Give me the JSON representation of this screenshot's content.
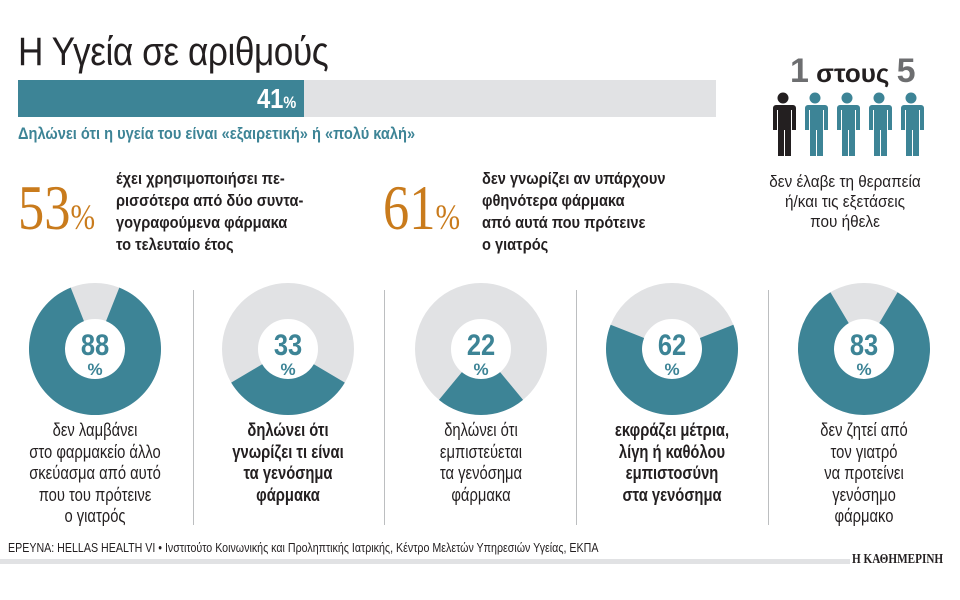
{
  "title": "Η Υγεία σε αριθμούς",
  "headline_bar": {
    "value": "41",
    "unit": "%",
    "fraction": 0.41,
    "caption": "Δηλώνει ότι η υγεία του είναι «εξαιρετική» ή «πολύ καλή»"
  },
  "stats": [
    {
      "value": "53",
      "unit": "%",
      "lines": [
        "έχει χρησιμοποιήσει πε-",
        "ρισσότερα από δύο συντα-",
        "γογραφούμενα φάρμακα",
        "το τελευταίο έτος"
      ]
    },
    {
      "value": "61",
      "unit": "%",
      "lines": [
        "δεν γνωρίζει αν υπάρχουν",
        "φθηνότερα φάρμακα",
        "από αυτά που πρότεινε",
        "ο γιατρός"
      ]
    }
  ],
  "ratio": {
    "num": "1",
    "word": "στους",
    "den": "5",
    "highlighted": 1,
    "total": 5,
    "lines": [
      "δεν έλαβε τη θεραπεία",
      "ή/και τις εξετάσεις",
      "που ήθελε"
    ]
  },
  "colors": {
    "teal": "#3d8496",
    "grey": "#e1e2e4",
    "orange": "#c97b1c",
    "dark": "#231f20"
  },
  "chart_data": {
    "type": "pie",
    "donuts": [
      {
        "value": 88,
        "label": "88",
        "unit": "%",
        "bold": false,
        "lines": [
          "δεν λαμβάνει",
          "στο φαρμακείο άλλο",
          "σκεύασμα από αυτό",
          "που του πρότεινε",
          "ο γιατρός"
        ]
      },
      {
        "value": 33,
        "label": "33",
        "unit": "%",
        "bold": true,
        "lines": [
          "δηλώνει ότι",
          "γνωρίζει τι είναι",
          "τα γενόσημα",
          "φάρμακα"
        ]
      },
      {
        "value": 22,
        "label": "22",
        "unit": "%",
        "bold": false,
        "lines": [
          "δηλώνει ότι",
          "εμπιστεύεται",
          "τα γενόσημα",
          "φάρμακα"
        ]
      },
      {
        "value": 62,
        "label": "62",
        "unit": "%",
        "bold": true,
        "lines": [
          "εκφράζει μέτρια,",
          "λίγη ή καθόλου",
          "εμπιστοσύνη",
          "στα γενόσημα"
        ]
      },
      {
        "value": 83,
        "label": "83",
        "unit": "%",
        "bold": false,
        "lines": [
          "δεν ζητεί από",
          "τον γιατρό",
          "να προτείνει",
          "γενόσημο",
          "φάρμακο"
        ]
      }
    ]
  },
  "source": "ΕΡΕΥΝΑ: HELLAS HEALTH VI • Ινστιτούτο Κοινωνικής και Προληπτικής Ιατρικής, Κέντρο Μελετών Υπηρεσιών Υγείας, ΕΚΠΑ",
  "logo": "Η ΚΑΘΗΜΕΡΙΝΗ"
}
